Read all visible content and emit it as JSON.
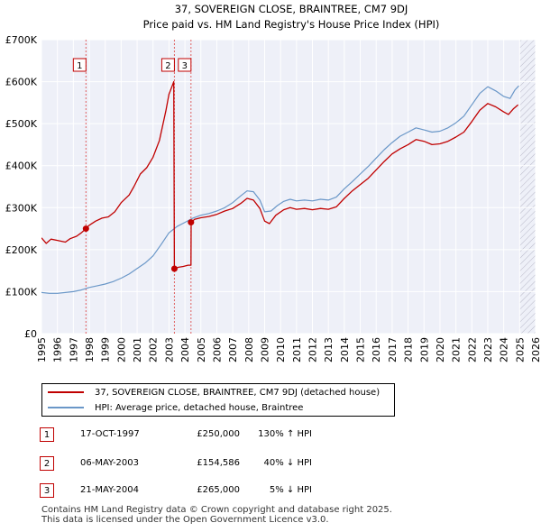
{
  "chart_data": {
    "type": "line",
    "title": "37, SOVEREIGN CLOSE, BRAINTREE, CM7 9DJ",
    "subtitle": "Price paid vs. HM Land Registry's House Price Index (HPI)",
    "xlim": [
      1995,
      2026
    ],
    "ylim": [
      0,
      700000
    ],
    "x_ticks": [
      1995,
      1996,
      1997,
      1998,
      1999,
      2000,
      2001,
      2002,
      2003,
      2004,
      2005,
      2006,
      2007,
      2008,
      2009,
      2010,
      2011,
      2012,
      2013,
      2014,
      2015,
      2016,
      2017,
      2018,
      2019,
      2020,
      2021,
      2022,
      2023,
      2024,
      2025,
      2026
    ],
    "y_ticks": [
      {
        "value": 0,
        "label": "£0"
      },
      {
        "value": 100000,
        "label": "£100K"
      },
      {
        "value": 200000,
        "label": "£200K"
      },
      {
        "value": 300000,
        "label": "£300K"
      },
      {
        "value": 400000,
        "label": "£400K"
      },
      {
        "value": 500000,
        "label": "£500K"
      },
      {
        "value": 600000,
        "label": "£600K"
      },
      {
        "value": 700000,
        "label": "£700K"
      }
    ],
    "grid": true,
    "series": [
      {
        "name": "37, SOVEREIGN CLOSE, BRAINTREE, CM7 9DJ (detached house)",
        "color": "#c00000",
        "points": [
          [
            1995.0,
            228000
          ],
          [
            1995.3,
            215000
          ],
          [
            1995.6,
            225000
          ],
          [
            1996.0,
            222000
          ],
          [
            1996.5,
            218000
          ],
          [
            1996.8,
            226000
          ],
          [
            1997.2,
            232000
          ],
          [
            1997.5,
            240000
          ],
          [
            1997.79,
            250000
          ],
          [
            1998.0,
            258000
          ],
          [
            1998.4,
            268000
          ],
          [
            1998.8,
            275000
          ],
          [
            1999.2,
            278000
          ],
          [
            1999.6,
            290000
          ],
          [
            2000.0,
            312000
          ],
          [
            2000.5,
            330000
          ],
          [
            2000.8,
            350000
          ],
          [
            2001.2,
            380000
          ],
          [
            2001.6,
            395000
          ],
          [
            2002.0,
            420000
          ],
          [
            2002.4,
            460000
          ],
          [
            2002.8,
            530000
          ],
          [
            2003.0,
            570000
          ],
          [
            2003.2,
            590000
          ],
          [
            2003.3,
            600000
          ],
          [
            2003.34,
            154586
          ],
          [
            2003.6,
            158000
          ],
          [
            2003.9,
            160000
          ],
          [
            2004.2,
            163000
          ],
          [
            2004.38,
            163000
          ],
          [
            2004.39,
            265000
          ],
          [
            2004.6,
            272000
          ],
          [
            2005.0,
            276000
          ],
          [
            2005.5,
            279000
          ],
          [
            2006.0,
            284000
          ],
          [
            2006.5,
            292000
          ],
          [
            2007.0,
            298000
          ],
          [
            2007.5,
            310000
          ],
          [
            2007.9,
            322000
          ],
          [
            2008.3,
            318000
          ],
          [
            2008.7,
            298000
          ],
          [
            2009.0,
            268000
          ],
          [
            2009.3,
            262000
          ],
          [
            2009.7,
            282000
          ],
          [
            2010.2,
            295000
          ],
          [
            2010.6,
            300000
          ],
          [
            2011.0,
            296000
          ],
          [
            2011.5,
            298000
          ],
          [
            2012.0,
            295000
          ],
          [
            2012.5,
            298000
          ],
          [
            2013.0,
            296000
          ],
          [
            2013.5,
            302000
          ],
          [
            2014.0,
            322000
          ],
          [
            2014.5,
            340000
          ],
          [
            2015.0,
            355000
          ],
          [
            2015.5,
            370000
          ],
          [
            2016.0,
            390000
          ],
          [
            2016.5,
            410000
          ],
          [
            2017.0,
            428000
          ],
          [
            2017.5,
            440000
          ],
          [
            2018.0,
            450000
          ],
          [
            2018.5,
            462000
          ],
          [
            2019.0,
            458000
          ],
          [
            2019.5,
            450000
          ],
          [
            2020.0,
            452000
          ],
          [
            2020.5,
            458000
          ],
          [
            2021.0,
            468000
          ],
          [
            2021.5,
            480000
          ],
          [
            2022.0,
            505000
          ],
          [
            2022.5,
            532000
          ],
          [
            2023.0,
            548000
          ],
          [
            2023.5,
            540000
          ],
          [
            2024.0,
            528000
          ],
          [
            2024.3,
            522000
          ],
          [
            2024.6,
            535000
          ],
          [
            2024.9,
            545000
          ]
        ]
      },
      {
        "name": "HPI: Average price, detached house, Braintree",
        "color": "#6a97c8",
        "points": [
          [
            1995.0,
            98000
          ],
          [
            1995.5,
            96000
          ],
          [
            1996.0,
            96000
          ],
          [
            1996.5,
            98000
          ],
          [
            1997.0,
            100000
          ],
          [
            1997.5,
            104000
          ],
          [
            1998.0,
            110000
          ],
          [
            1998.5,
            114000
          ],
          [
            1999.0,
            118000
          ],
          [
            1999.5,
            124000
          ],
          [
            2000.0,
            132000
          ],
          [
            2000.5,
            142000
          ],
          [
            2001.0,
            155000
          ],
          [
            2001.5,
            168000
          ],
          [
            2002.0,
            185000
          ],
          [
            2002.5,
            212000
          ],
          [
            2003.0,
            240000
          ],
          [
            2003.5,
            255000
          ],
          [
            2004.0,
            265000
          ],
          [
            2004.5,
            275000
          ],
          [
            2005.0,
            282000
          ],
          [
            2005.5,
            286000
          ],
          [
            2006.0,
            292000
          ],
          [
            2006.5,
            300000
          ],
          [
            2007.0,
            312000
          ],
          [
            2007.5,
            328000
          ],
          [
            2007.9,
            340000
          ],
          [
            2008.3,
            338000
          ],
          [
            2008.7,
            318000
          ],
          [
            2009.0,
            290000
          ],
          [
            2009.4,
            292000
          ],
          [
            2009.8,
            305000
          ],
          [
            2010.2,
            315000
          ],
          [
            2010.6,
            320000
          ],
          [
            2011.0,
            316000
          ],
          [
            2011.5,
            318000
          ],
          [
            2012.0,
            316000
          ],
          [
            2012.5,
            320000
          ],
          [
            2013.0,
            318000
          ],
          [
            2013.5,
            325000
          ],
          [
            2014.0,
            345000
          ],
          [
            2014.5,
            362000
          ],
          [
            2015.0,
            380000
          ],
          [
            2015.5,
            398000
          ],
          [
            2016.0,
            418000
          ],
          [
            2016.5,
            438000
          ],
          [
            2017.0,
            455000
          ],
          [
            2017.5,
            470000
          ],
          [
            2018.0,
            480000
          ],
          [
            2018.5,
            490000
          ],
          [
            2019.0,
            485000
          ],
          [
            2019.5,
            480000
          ],
          [
            2020.0,
            482000
          ],
          [
            2020.5,
            490000
          ],
          [
            2021.0,
            502000
          ],
          [
            2021.5,
            518000
          ],
          [
            2022.0,
            545000
          ],
          [
            2022.5,
            572000
          ],
          [
            2023.0,
            588000
          ],
          [
            2023.5,
            578000
          ],
          [
            2024.0,
            565000
          ],
          [
            2024.4,
            560000
          ],
          [
            2024.7,
            580000
          ],
          [
            2024.95,
            590000
          ]
        ]
      }
    ],
    "sales": [
      {
        "id": "1",
        "x": 1997.79,
        "value": 250000
      },
      {
        "id": "2",
        "x": 2003.34,
        "value": 154586
      },
      {
        "id": "3",
        "x": 2004.38,
        "value": 265000
      }
    ],
    "hatch_from": 2025.0
  },
  "legend": {
    "items": [
      {
        "label": "37, SOVEREIGN CLOSE, BRAINTREE, CM7 9DJ (detached house)"
      },
      {
        "label": "HPI: Average price, detached house, Braintree"
      }
    ]
  },
  "table": {
    "rows": [
      {
        "num": "1",
        "date": "17-OCT-1997",
        "price": "£250,000",
        "hpi": "130% ↑ HPI"
      },
      {
        "num": "2",
        "date": "06-MAY-2003",
        "price": "£154,586",
        "hpi": "40% ↓ HPI"
      },
      {
        "num": "3",
        "date": "21-MAY-2004",
        "price": "£265,000",
        "hpi": "5% ↓ HPI"
      }
    ]
  },
  "footer": {
    "line1": "Contains HM Land Registry data © Crown copyright and database right 2025.",
    "line2": "This data is licensed under the Open Government Licence v3.0."
  },
  "colors": {
    "property": "#c00000",
    "hpi": "#6a97c8",
    "plot_bg": "#eef0f8",
    "grid": "#ffffff"
  }
}
